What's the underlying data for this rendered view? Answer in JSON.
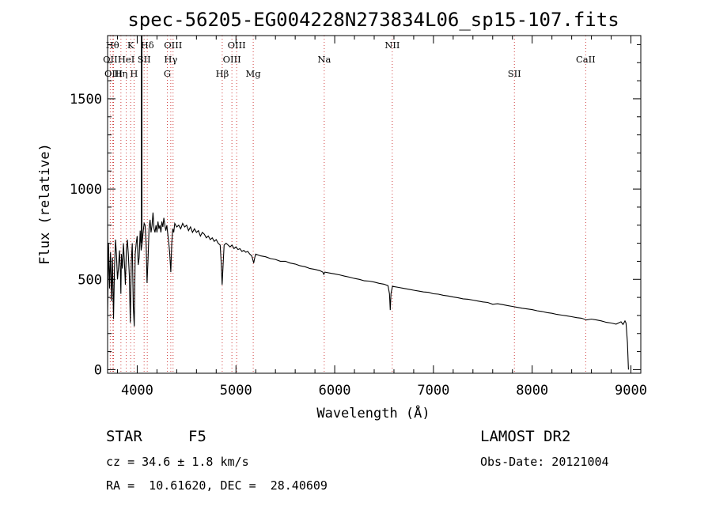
{
  "chart_data": {
    "type": "line",
    "title": "spec-56205-EG004228N273834L06_sp15-107.fits",
    "xlabel": "Wavelength (Å)",
    "ylabel": "Flux (relative)",
    "xlim": [
      3700,
      9100
    ],
    "ylim": [
      -20,
      1850
    ],
    "x_ticks": [
      4000,
      5000,
      6000,
      7000,
      8000,
      9000
    ],
    "y_ticks": [
      0,
      500,
      1000,
      1500
    ],
    "grid": false,
    "spectrum": [
      [
        3700,
        300
      ],
      [
        3710,
        700
      ],
      [
        3720,
        450
      ],
      [
        3730,
        650
      ],
      [
        3740,
        380
      ],
      [
        3750,
        620
      ],
      [
        3760,
        280
      ],
      [
        3770,
        560
      ],
      [
        3780,
        720
      ],
      [
        3790,
        640
      ],
      [
        3800,
        500
      ],
      [
        3810,
        560
      ],
      [
        3820,
        660
      ],
      [
        3830,
        540
      ],
      [
        3835,
        420
      ],
      [
        3840,
        640
      ],
      [
        3850,
        560
      ],
      [
        3860,
        700
      ],
      [
        3870,
        600
      ],
      [
        3880,
        470
      ],
      [
        3890,
        660
      ],
      [
        3900,
        720
      ],
      [
        3910,
        640
      ],
      [
        3920,
        520
      ],
      [
        3930,
        260
      ],
      [
        3940,
        600
      ],
      [
        3950,
        700
      ],
      [
        3960,
        350
      ],
      [
        3970,
        240
      ],
      [
        3980,
        640
      ],
      [
        3990,
        700
      ],
      [
        4000,
        740
      ],
      [
        4010,
        580
      ],
      [
        4020,
        620
      ],
      [
        4030,
        770
      ],
      [
        4040,
        660
      ],
      [
        4050,
        700
      ],
      [
        4060,
        760
      ],
      [
        4070,
        810
      ],
      [
        4080,
        800
      ],
      [
        4090,
        700
      ],
      [
        4100,
        480
      ],
      [
        4110,
        620
      ],
      [
        4120,
        780
      ],
      [
        4130,
        830
      ],
      [
        4140,
        760
      ],
      [
        4150,
        800
      ],
      [
        4160,
        870
      ],
      [
        4170,
        780
      ],
      [
        4180,
        760
      ],
      [
        4190,
        800
      ],
      [
        4200,
        760
      ],
      [
        4210,
        820
      ],
      [
        4220,
        780
      ],
      [
        4230,
        800
      ],
      [
        4240,
        760
      ],
      [
        4250,
        820
      ],
      [
        4260,
        790
      ],
      [
        4270,
        840
      ],
      [
        4280,
        800
      ],
      [
        4290,
        770
      ],
      [
        4300,
        800
      ],
      [
        4310,
        750
      ],
      [
        4320,
        700
      ],
      [
        4330,
        640
      ],
      [
        4340,
        540
      ],
      [
        4350,
        700
      ],
      [
        4360,
        780
      ],
      [
        4370,
        760
      ],
      [
        4380,
        810
      ],
      [
        4400,
        790
      ],
      [
        4420,
        800
      ],
      [
        4440,
        780
      ],
      [
        4460,
        810
      ],
      [
        4480,
        790
      ],
      [
        4500,
        800
      ],
      [
        4520,
        770
      ],
      [
        4540,
        790
      ],
      [
        4560,
        760
      ],
      [
        4580,
        780
      ],
      [
        4600,
        760
      ],
      [
        4620,
        770
      ],
      [
        4640,
        740
      ],
      [
        4660,
        760
      ],
      [
        4680,
        750
      ],
      [
        4700,
        730
      ],
      [
        4720,
        740
      ],
      [
        4740,
        720
      ],
      [
        4760,
        730
      ],
      [
        4780,
        710
      ],
      [
        4800,
        720
      ],
      [
        4820,
        700
      ],
      [
        4840,
        690
      ],
      [
        4850,
        600
      ],
      [
        4860,
        470
      ],
      [
        4870,
        580
      ],
      [
        4880,
        690
      ],
      [
        4900,
        700
      ],
      [
        4920,
        690
      ],
      [
        4940,
        680
      ],
      [
        4960,
        690
      ],
      [
        4980,
        670
      ],
      [
        5000,
        680
      ],
      [
        5020,
        665
      ],
      [
        5040,
        670
      ],
      [
        5060,
        655
      ],
      [
        5080,
        660
      ],
      [
        5100,
        650
      ],
      [
        5120,
        655
      ],
      [
        5140,
        640
      ],
      [
        5160,
        630
      ],
      [
        5170,
        610
      ],
      [
        5180,
        590
      ],
      [
        5190,
        620
      ],
      [
        5200,
        640
      ],
      [
        5250,
        630
      ],
      [
        5300,
        625
      ],
      [
        5350,
        615
      ],
      [
        5400,
        610
      ],
      [
        5450,
        600
      ],
      [
        5500,
        600
      ],
      [
        5550,
        590
      ],
      [
        5600,
        585
      ],
      [
        5650,
        575
      ],
      [
        5700,
        570
      ],
      [
        5750,
        560
      ],
      [
        5800,
        555
      ],
      [
        5850,
        548
      ],
      [
        5880,
        540
      ],
      [
        5890,
        528
      ],
      [
        5900,
        540
      ],
      [
        5950,
        535
      ],
      [
        6000,
        530
      ],
      [
        6050,
        525
      ],
      [
        6100,
        518
      ],
      [
        6150,
        512
      ],
      [
        6200,
        505
      ],
      [
        6250,
        500
      ],
      [
        6300,
        492
      ],
      [
        6350,
        490
      ],
      [
        6400,
        485
      ],
      [
        6450,
        478
      ],
      [
        6500,
        473
      ],
      [
        6540,
        465
      ],
      [
        6555,
        420
      ],
      [
        6563,
        330
      ],
      [
        6570,
        420
      ],
      [
        6585,
        462
      ],
      [
        6600,
        460
      ],
      [
        6650,
        455
      ],
      [
        6700,
        450
      ],
      [
        6750,
        445
      ],
      [
        6800,
        440
      ],
      [
        6850,
        435
      ],
      [
        6900,
        430
      ],
      [
        6950,
        428
      ],
      [
        7000,
        420
      ],
      [
        7050,
        418
      ],
      [
        7100,
        412
      ],
      [
        7150,
        408
      ],
      [
        7200,
        402
      ],
      [
        7250,
        398
      ],
      [
        7300,
        392
      ],
      [
        7350,
        390
      ],
      [
        7400,
        385
      ],
      [
        7450,
        380
      ],
      [
        7500,
        375
      ],
      [
        7550,
        372
      ],
      [
        7600,
        362
      ],
      [
        7650,
        365
      ],
      [
        7700,
        360
      ],
      [
        7750,
        355
      ],
      [
        7800,
        350
      ],
      [
        7850,
        345
      ],
      [
        7900,
        340
      ],
      [
        7950,
        336
      ],
      [
        8000,
        332
      ],
      [
        8050,
        326
      ],
      [
        8100,
        322
      ],
      [
        8150,
        316
      ],
      [
        8200,
        312
      ],
      [
        8250,
        306
      ],
      [
        8300,
        302
      ],
      [
        8350,
        298
      ],
      [
        8400,
        293
      ],
      [
        8450,
        288
      ],
      [
        8500,
        285
      ],
      [
        8550,
        275
      ],
      [
        8600,
        280
      ],
      [
        8650,
        275
      ],
      [
        8700,
        270
      ],
      [
        8750,
        262
      ],
      [
        8800,
        258
      ],
      [
        8850,
        252
      ],
      [
        8900,
        265
      ],
      [
        8920,
        250
      ],
      [
        8940,
        270
      ],
      [
        8950,
        258
      ],
      [
        8965,
        150
      ],
      [
        8975,
        0
      ]
    ],
    "line_markers": [
      {
        "label": "OII",
        "x": 3727,
        "row": 2
      },
      {
        "label": "Hθ",
        "x": 3750,
        "row": 1
      },
      {
        "label": "OIII",
        "x": 3760,
        "row": 3
      },
      {
        "label": "Hη",
        "x": 3835,
        "row": 3
      },
      {
        "label": "HeI",
        "x": 3889,
        "row": 2
      },
      {
        "label": "K",
        "x": 3934,
        "row": 1
      },
      {
        "label": "H",
        "x": 3968,
        "row": 3
      },
      {
        "label": "SII",
        "x": 4070,
        "row": 2
      },
      {
        "label": "Hδ",
        "x": 4102,
        "row": 1
      },
      {
        "label": "Hγ",
        "x": 4340,
        "row": 2
      },
      {
        "label": "G",
        "x": 4305,
        "row": 3
      },
      {
        "label": "OIII",
        "x": 4363,
        "row": 1
      },
      {
        "label": "Hβ",
        "x": 4861,
        "row": 3
      },
      {
        "label": "OIII",
        "x": 4959,
        "row": 2
      },
      {
        "label": "OIII",
        "x": 5007,
        "row": 1
      },
      {
        "label": "Mg",
        "x": 5175,
        "row": 3
      },
      {
        "label": "Na",
        "x": 5894,
        "row": 2
      },
      {
        "label": "NII",
        "x": 6583,
        "row": 1
      },
      {
        "label": "SII",
        "x": 7820,
        "row": 3
      },
      {
        "label": "CaII",
        "x": 8542,
        "row": 2
      }
    ],
    "spike": {
      "x": 4045,
      "value": 1850
    },
    "marker_color": "#d04040"
  },
  "info": {
    "object_type": "STAR",
    "subclass": "F5",
    "survey": "LAMOST DR2",
    "cz": "cz = 34.6 ± 1.8 km/s",
    "obs_date": "Obs-Date: 20121004",
    "coords": "RA =  10.61620, DEC =  28.40609"
  }
}
